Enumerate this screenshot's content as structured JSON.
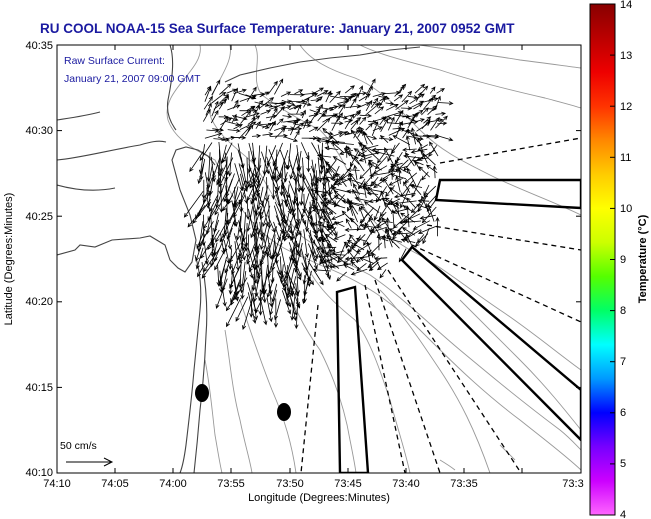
{
  "title": "RU COOL  NOAA-15  Sea Surface Temperature:  January 21, 2007 0952 GMT",
  "annotation": {
    "line1": "Raw Surface Current:",
    "line2": "January 21, 2007 09:00 GMT"
  },
  "scale_label": "50 cm/s",
  "axes": {
    "xlabel": "Longitude (Degrees:Minutes)",
    "ylabel": "Latitude (Degrees:Minutes)",
    "x_ticks": [
      "74:10",
      "74:05",
      "74:00",
      "73:55",
      "73:50",
      "73:45",
      "73:40",
      "73:35",
      "73:3"
    ],
    "y_ticks": [
      "40:35",
      "40:30",
      "40:25",
      "40:20",
      "40:15",
      "40:10"
    ]
  },
  "colorbar": {
    "label": "Temperature (°C)",
    "min": 4,
    "max": 14,
    "ticks": [
      "14",
      "13",
      "12",
      "11",
      "10",
      "9",
      "8",
      "7",
      "6",
      "5",
      "4"
    ],
    "colors": [
      "#ff66ff",
      "#cc00ff",
      "#7700ff",
      "#0000ff",
      "#0099ff",
      "#00ffff",
      "#00ff66",
      "#55ff00",
      "#ccff00",
      "#ffff00",
      "#ffcc00",
      "#ff8800",
      "#ff3300",
      "#ee0000",
      "#bb0000",
      "#880000"
    ]
  },
  "colors": {
    "title": "#1a1aa0",
    "annotation": "#1a1aa0",
    "coast": "#444444",
    "bathymetry": "#999999",
    "arrows": "#000000"
  }
}
